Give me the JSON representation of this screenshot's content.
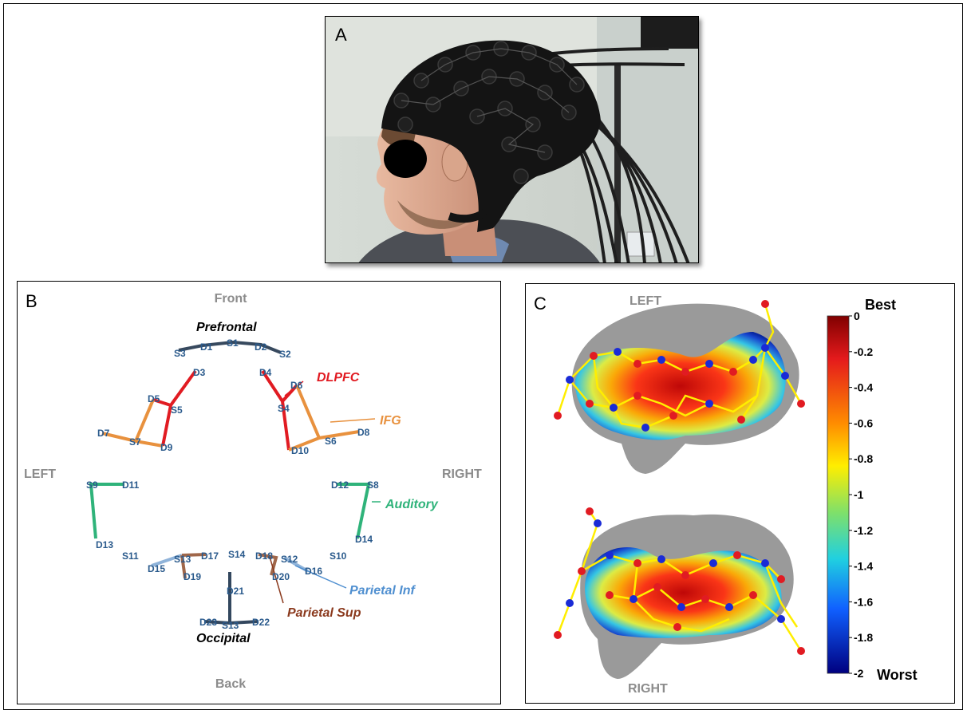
{
  "panels": {
    "a": {
      "letter": "A"
    },
    "b": {
      "letter": "B",
      "directions": {
        "front": "Front",
        "back": "Back",
        "left": "LEFT",
        "right": "RIGHT"
      },
      "regions": {
        "prefrontal": "Prefrontal",
        "dlpfc": "DLPFC",
        "ifg": "IFG",
        "auditory": "Auditory",
        "parietal_inf": "Parietal Inf",
        "parietal_sup": "Parietal Sup",
        "occipital": "Occipital"
      },
      "channels": {
        "S1": "S1",
        "S2": "S2",
        "S3": "S3",
        "S4": "S4",
        "S5": "S5",
        "S6": "S6",
        "S7": "S7",
        "S8": "S8",
        "S9": "S9",
        "S10": "S10",
        "S11": "S11",
        "S12": "S12",
        "S13a": "S13",
        "S13b": "S13",
        "S14": "S14",
        "D1": "D1",
        "D2": "D2",
        "D3": "D3",
        "D4": "D4",
        "D5": "D5",
        "D6": "D6",
        "D7": "D7",
        "D8": "D8",
        "D9": "D9",
        "D10": "D10",
        "D11": "D11",
        "D12": "D12",
        "D13": "D13",
        "D14": "D14",
        "D15": "D15",
        "D16": "D16",
        "D17": "D17",
        "D18": "D18",
        "D19": "D19",
        "D20": "D20",
        "D21": "D21",
        "D22": "D22",
        "D23": "D23"
      },
      "colors": {
        "prefrontal": "#37495e",
        "dlpfc": "#e11b22",
        "ifg": "#e8913e",
        "auditory": "#2fb37a",
        "parietal_inf": "#4f8fd0",
        "parietal_sup": "#8b3a1e",
        "occipital": "#33475e",
        "channel_text": "#2a5a8c",
        "direction_text": "#8c8c8c"
      }
    },
    "c": {
      "letter": "C",
      "view_top": "LEFT",
      "view_bottom": "RIGHT",
      "colorbar": {
        "best_label": "Best",
        "worst_label": "Worst",
        "ticks": [
          "0",
          "-0.2",
          "-0.4",
          "-0.6",
          "-0.8",
          "-1",
          "-1.2",
          "-1.4",
          "-1.6",
          "-1.8",
          "-2"
        ]
      }
    }
  }
}
